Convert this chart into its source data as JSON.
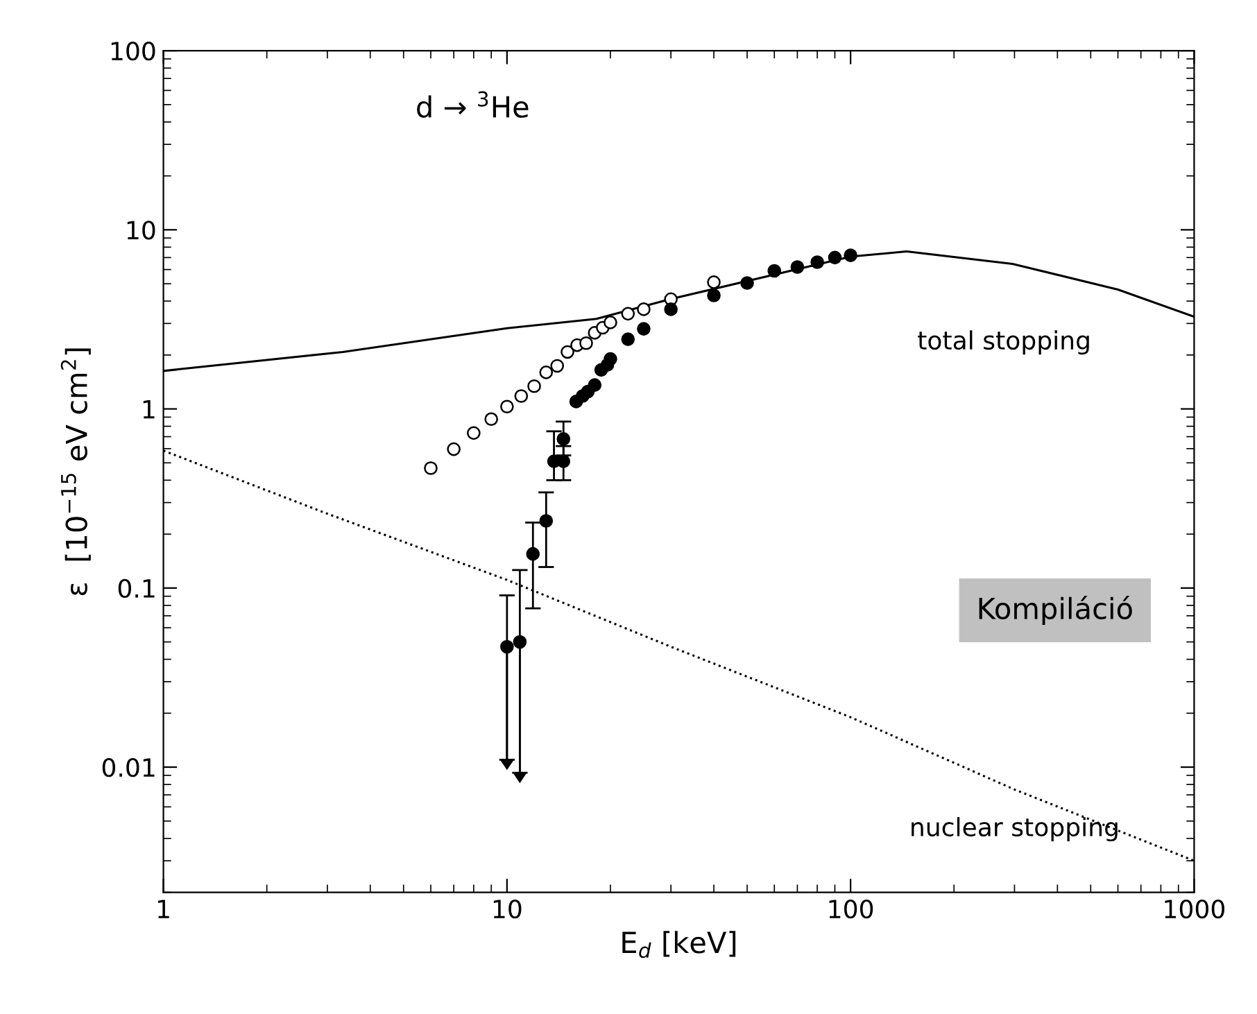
{
  "chart_data": {
    "type": "line",
    "title": "d → $^{3}$He",
    "xlabel": "E$_{d}$ [keV]",
    "ylabel": "ε  [10$^{−15}$ eV cm$^{2}$]",
    "log": "xy",
    "xlim": [
      1,
      1000
    ],
    "ylim": [
      0.002,
      100
    ],
    "xticks": [
      1,
      10,
      100,
      1000
    ],
    "yticks": [
      0.01,
      0.1,
      1,
      10,
      100
    ],
    "grid": false,
    "legend": false,
    "annotations": [
      "Kompiláció"
    ],
    "series": [
      {
        "name": "total stopping",
        "color": "#000000",
        "line_style": "solid",
        "marker": "none",
        "x": [
          1,
          3.33,
          10,
          18.2,
          29.9,
          100,
          145.6,
          296,
          600,
          1000
        ],
        "values": [
          1.63,
          2.08,
          2.82,
          3.18,
          4.1,
          7.08,
          7.57,
          6.45,
          4.64,
          3.27
        ]
      },
      {
        "name": "nuclear stopping",
        "color": "#000000",
        "line_style": "dotted",
        "marker": "none",
        "x": [
          1,
          3,
          10,
          30,
          100,
          300,
          1000
        ],
        "values": [
          0.585,
          0.26,
          0.111,
          0.047,
          0.019,
          0.0075,
          0.003
        ]
      },
      {
        "type": "scatter",
        "color": "#ffffff",
        "marker": "circle",
        "x": [
          6,
          7,
          8,
          9,
          10,
          11,
          12,
          13,
          14,
          15,
          16,
          17,
          18,
          19,
          20,
          22.5,
          25,
          30,
          40
        ],
        "values": [
          0.467,
          0.596,
          0.733,
          0.877,
          1.03,
          1.18,
          1.34,
          1.6,
          1.74,
          2.08,
          2.27,
          2.33,
          2.66,
          2.84,
          3.04,
          3.4,
          3.6,
          4.1,
          5.1
        ]
      },
      {
        "type": "scatter",
        "color": "#000000",
        "marker": "circle",
        "x": [
          10,
          10.9,
          11.9,
          13.0,
          13.7,
          14.6,
          14.6,
          15.9,
          16.6,
          17.2,
          18.0,
          18.8,
          19.6,
          20,
          22.5,
          25,
          30,
          40,
          50,
          60,
          70,
          80,
          90,
          100
        ],
        "values": [
          0.047,
          0.05,
          0.155,
          0.237,
          0.51,
          0.51,
          0.68,
          1.1,
          1.18,
          1.25,
          1.36,
          1.65,
          1.76,
          1.9,
          2.45,
          2.8,
          3.6,
          4.3,
          5.05,
          5.9,
          6.2,
          6.6,
          7.0,
          7.2
        ],
        "errors": [
          [
            0.011,
            0.091
          ],
          [
            0.0093,
            0.126
          ],
          [
            0.077,
            0.232
          ],
          [
            0.131,
            0.342
          ],
          [
            0.4,
            0.75
          ],
          [
            0.4,
            0.62
          ],
          [
            0.55,
            0.85
          ],
          null,
          null,
          null,
          null,
          null,
          null,
          null,
          null,
          null,
          null,
          null,
          null,
          null,
          null,
          null,
          null,
          null
        ]
      }
    ]
  }
}
